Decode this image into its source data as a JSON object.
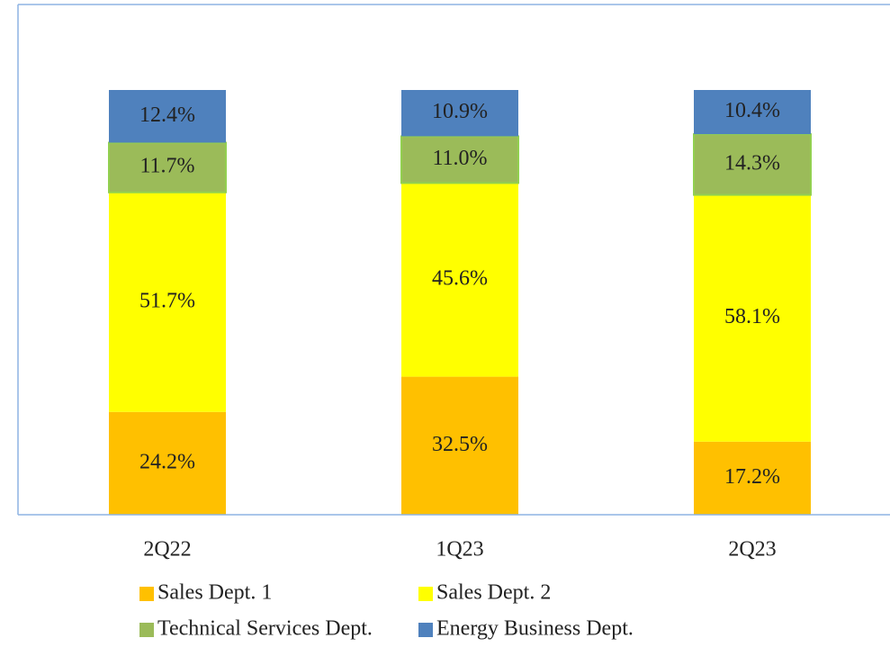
{
  "chart_data": {
    "type": "stacked_bar",
    "categories": [
      "2Q22",
      "1Q23",
      "2Q23"
    ],
    "series": [
      {
        "name": "Sales Dept. 1",
        "color": "#ffc000",
        "values": [
          24.2,
          32.5,
          17.2
        ],
        "value_labels": [
          "24.2%",
          "32.5%",
          "17.2%"
        ]
      },
      {
        "name": "Sales Dept. 2",
        "color": "#ffff00",
        "values": [
          51.7,
          45.6,
          58.1
        ],
        "value_labels": [
          "51.7%",
          "45.6%",
          "58.1%"
        ]
      },
      {
        "name": "Technical Services Dept.",
        "color": "#9bbb59",
        "values": [
          11.7,
          11.0,
          14.3
        ],
        "value_labels": [
          "11.7%",
          "11.0%",
          "14.3%"
        ]
      },
      {
        "name": "Energy Business Dept.",
        "color": "#4f81bd",
        "values": [
          12.4,
          10.9,
          10.4
        ],
        "value_labels": [
          "12.4%",
          "10.9%",
          "10.4%"
        ]
      }
    ],
    "ylim": [
      0,
      100
    ],
    "legend": "bottom"
  }
}
